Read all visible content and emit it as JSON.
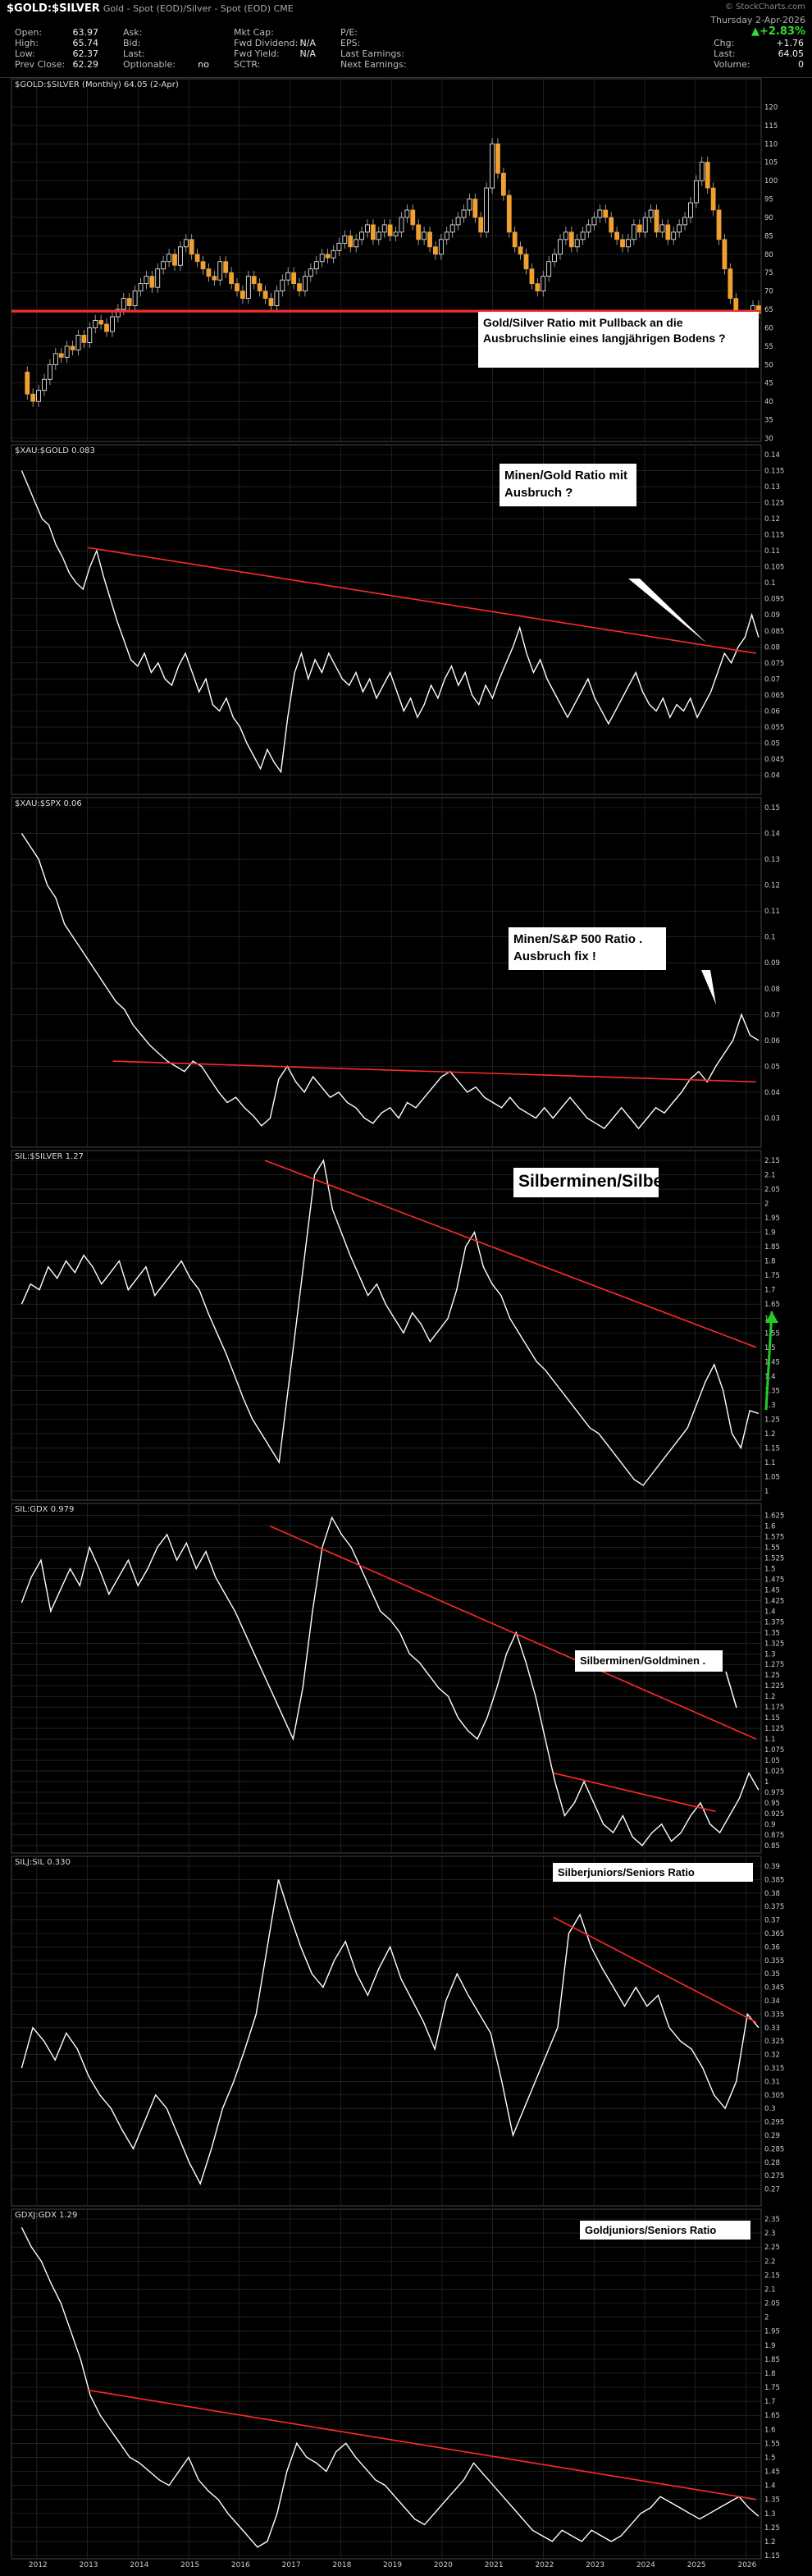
{
  "header": {
    "symbol": "$GOLD:$SILVER",
    "description": "Gold - Spot (EOD)/Silver - Spot (EOD)  CME",
    "date": "Thursday 2-Apr-2026",
    "change_pct": "▲+2.83%",
    "left_stats": [
      {
        "label": "Open:",
        "value": "63.97"
      },
      {
        "label": "High:",
        "value": "65.74"
      },
      {
        "label": "Low:",
        "value": "62.37"
      },
      {
        "label": "Prev Close:",
        "value": "62.29"
      }
    ],
    "mid_stats": [
      {
        "label": "Ask:",
        "value": ""
      },
      {
        "label": "Bid:",
        "value": ""
      },
      {
        "label": "Last:",
        "value": ""
      },
      {
        "label": "Optionable:",
        "value": "no"
      }
    ],
    "mid2_stats": [
      {
        "label": "Mkt Cap:",
        "value": ""
      },
      {
        "label": "Fwd Dividend:",
        "value": "N/A"
      },
      {
        "label": "Fwd Yield:",
        "value": "N/A"
      },
      {
        "label": "SCTR:",
        "value": ""
      }
    ],
    "right_stats": [
      {
        "label": "P/E:",
        "value": ""
      },
      {
        "label": "EPS:",
        "value": ""
      },
      {
        "label": "Last Earnings:",
        "value": ""
      },
      {
        "label": "Next Earnings:",
        "value": ""
      }
    ],
    "far_right_stats": [
      {
        "label": "Chg:",
        "value": "+1.76"
      },
      {
        "label": "Last:",
        "value": "64.05"
      },
      {
        "label": "Volume:",
        "value": "0"
      }
    ],
    "watermark": "© StockCharts.com"
  },
  "chart_data": [
    {
      "type": "candlestick",
      "legend": "$GOLD:$SILVER (Monthly) 64.05 (2-Apr)",
      "ylim": [
        30,
        125
      ],
      "ticks": [
        30,
        35,
        40,
        45,
        50,
        55,
        60,
        65,
        70,
        75,
        80,
        85,
        90,
        95,
        100,
        105,
        110,
        115,
        120
      ],
      "closes": [
        48,
        42,
        40,
        43,
        46,
        50,
        53,
        52,
        55,
        54,
        58,
        56,
        60,
        62,
        61,
        59,
        63,
        65,
        68,
        66,
        70,
        72,
        74,
        71,
        76,
        78,
        80,
        77,
        82,
        84,
        80,
        78,
        76,
        74,
        73,
        78,
        75,
        72,
        70,
        68,
        74,
        72,
        70,
        68,
        66,
        70,
        73,
        75,
        72,
        70,
        74,
        76,
        78,
        80,
        79,
        81,
        83,
        85,
        82,
        84,
        86,
        88,
        84,
        86,
        88,
        85,
        86,
        90,
        92,
        88,
        84,
        86,
        82,
        80,
        84,
        86,
        88,
        90,
        92,
        95,
        90,
        86,
        98,
        110,
        102,
        96,
        86,
        82,
        80,
        76,
        72,
        70,
        74,
        78,
        80,
        84,
        86,
        82,
        84,
        86,
        88,
        90,
        92,
        90,
        86,
        84,
        82,
        84,
        88,
        86,
        90,
        92,
        86,
        88,
        84,
        86,
        88,
        90,
        94,
        100,
        105,
        98,
        92,
        84,
        76,
        68,
        60,
        52,
        58,
        66,
        64
      ],
      "annotations": [
        {
          "text": "Gold/Silver Ratio mit Pullback an die Ausbruchslinie eines langjährigen Bodens ?"
        }
      ]
    },
    {
      "type": "line",
      "legend": "$XAU:$GOLD 0.083",
      "ylim": [
        0.035,
        0.14
      ],
      "ticks": [
        0.04,
        0.045,
        0.05,
        0.055,
        0.06,
        0.065,
        0.07,
        0.075,
        0.08,
        0.085,
        0.09,
        0.095,
        0.1,
        0.105,
        0.11,
        0.115,
        0.12,
        0.125,
        0.13,
        0.135,
        0.14
      ],
      "values": [
        0.135,
        0.13,
        0.125,
        0.12,
        0.118,
        0.112,
        0.108,
        0.103,
        0.1,
        0.098,
        0.105,
        0.11,
        0.102,
        0.095,
        0.088,
        0.082,
        0.076,
        0.074,
        0.078,
        0.072,
        0.075,
        0.07,
        0.068,
        0.074,
        0.078,
        0.072,
        0.066,
        0.07,
        0.062,
        0.06,
        0.064,
        0.058,
        0.055,
        0.05,
        0.046,
        0.042,
        0.048,
        0.044,
        0.041,
        0.058,
        0.072,
        0.078,
        0.07,
        0.076,
        0.072,
        0.078,
        0.074,
        0.07,
        0.068,
        0.072,
        0.066,
        0.07,
        0.064,
        0.068,
        0.072,
        0.066,
        0.06,
        0.064,
        0.058,
        0.062,
        0.068,
        0.064,
        0.07,
        0.074,
        0.068,
        0.072,
        0.065,
        0.062,
        0.068,
        0.064,
        0.07,
        0.075,
        0.08,
        0.086,
        0.078,
        0.072,
        0.076,
        0.07,
        0.066,
        0.062,
        0.058,
        0.062,
        0.066,
        0.07,
        0.064,
        0.06,
        0.056,
        0.06,
        0.064,
        0.068,
        0.072,
        0.066,
        0.062,
        0.06,
        0.064,
        0.058,
        0.062,
        0.06,
        0.064,
        0.058,
        0.062,
        0.066,
        0.072,
        0.078,
        0.075,
        0.08,
        0.083,
        0.09,
        0.083
      ],
      "trendline": {
        "x": [
          2013,
          2026.2
        ],
        "y": [
          0.111,
          0.078
        ]
      },
      "annotations": [
        {
          "text": "Minen/Gold Ratio mit Ausbruch ?"
        }
      ]
    },
    {
      "type": "line",
      "legend": "$XAU:$SPX 0.06",
      "ylim": [
        0.02,
        0.15
      ],
      "ticks": [
        0.03,
        0.04,
        0.05,
        0.06,
        0.07,
        0.08,
        0.09,
        0.1,
        0.11,
        0.12,
        0.13,
        0.14,
        0.15
      ],
      "values": [
        0.14,
        0.135,
        0.13,
        0.12,
        0.115,
        0.105,
        0.1,
        0.095,
        0.09,
        0.085,
        0.08,
        0.075,
        0.072,
        0.066,
        0.062,
        0.058,
        0.055,
        0.052,
        0.05,
        0.048,
        0.052,
        0.05,
        0.045,
        0.04,
        0.036,
        0.038,
        0.034,
        0.031,
        0.027,
        0.03,
        0.045,
        0.05,
        0.044,
        0.04,
        0.046,
        0.042,
        0.038,
        0.04,
        0.036,
        0.034,
        0.03,
        0.028,
        0.032,
        0.034,
        0.03,
        0.036,
        0.034,
        0.038,
        0.042,
        0.046,
        0.048,
        0.044,
        0.04,
        0.042,
        0.038,
        0.036,
        0.034,
        0.038,
        0.034,
        0.032,
        0.03,
        0.034,
        0.03,
        0.034,
        0.038,
        0.034,
        0.03,
        0.028,
        0.026,
        0.03,
        0.034,
        0.03,
        0.026,
        0.03,
        0.034,
        0.032,
        0.036,
        0.04,
        0.045,
        0.048,
        0.044,
        0.05,
        0.055,
        0.06,
        0.07,
        0.062,
        0.06
      ],
      "trendline": {
        "x": [
          2013.5,
          2026.2
        ],
        "y": [
          0.052,
          0.044
        ]
      },
      "annotations": [
        {
          "text": "Minen/S&P 500 Ratio . Ausbruch fix !"
        }
      ]
    },
    {
      "type": "line",
      "legend": "SIL:$SILVER 1.27",
      "ylim": [
        0.98,
        2.15
      ],
      "ticks": [
        1.0,
        1.05,
        1.1,
        1.15,
        1.2,
        1.25,
        1.3,
        1.35,
        1.4,
        1.45,
        1.5,
        1.55,
        1.6,
        1.65,
        1.7,
        1.75,
        1.8,
        1.85,
        1.9,
        1.95,
        2.0,
        2.05,
        2.1,
        2.15
      ],
      "values": [
        1.65,
        1.72,
        1.7,
        1.78,
        1.74,
        1.8,
        1.76,
        1.82,
        1.78,
        1.72,
        1.76,
        1.8,
        1.7,
        1.74,
        1.78,
        1.68,
        1.72,
        1.76,
        1.8,
        1.74,
        1.7,
        1.62,
        1.55,
        1.48,
        1.4,
        1.32,
        1.25,
        1.2,
        1.15,
        1.1,
        1.35,
        1.6,
        1.85,
        2.1,
        2.15,
        1.98,
        1.9,
        1.82,
        1.75,
        1.68,
        1.72,
        1.65,
        1.6,
        1.55,
        1.62,
        1.58,
        1.52,
        1.56,
        1.6,
        1.7,
        1.85,
        1.9,
        1.78,
        1.72,
        1.68,
        1.6,
        1.55,
        1.5,
        1.45,
        1.42,
        1.38,
        1.34,
        1.3,
        1.26,
        1.22,
        1.2,
        1.16,
        1.12,
        1.08,
        1.04,
        1.02,
        1.06,
        1.1,
        1.14,
        1.18,
        1.22,
        1.3,
        1.38,
        1.44,
        1.35,
        1.2,
        1.15,
        1.28,
        1.27
      ],
      "trendline": {
        "x": [
          2016.5,
          2026.2
        ],
        "y": [
          2.15,
          1.5
        ]
      },
      "annotations": [
        {
          "text": "Silberminen/Silber"
        }
      ]
    },
    {
      "type": "line",
      "legend": "SIL:GDX 0.979",
      "ylim": [
        0.84,
        1.63
      ],
      "ticks": [
        0.85,
        0.875,
        0.9,
        0.925,
        0.95,
        0.975,
        1.0,
        1.025,
        1.05,
        1.075,
        1.1,
        1.125,
        1.15,
        1.175,
        1.2,
        1.225,
        1.25,
        1.275,
        1.3,
        1.325,
        1.35,
        1.375,
        1.4,
        1.425,
        1.45,
        1.475,
        1.5,
        1.525,
        1.55,
        1.575,
        1.6,
        1.625
      ],
      "values": [
        1.42,
        1.48,
        1.52,
        1.4,
        1.45,
        1.5,
        1.46,
        1.55,
        1.5,
        1.44,
        1.48,
        1.52,
        1.46,
        1.5,
        1.55,
        1.58,
        1.52,
        1.56,
        1.5,
        1.54,
        1.48,
        1.44,
        1.4,
        1.35,
        1.3,
        1.25,
        1.2,
        1.15,
        1.1,
        1.22,
        1.4,
        1.55,
        1.62,
        1.58,
        1.55,
        1.5,
        1.45,
        1.4,
        1.38,
        1.35,
        1.3,
        1.28,
        1.25,
        1.22,
        1.2,
        1.15,
        1.12,
        1.1,
        1.15,
        1.22,
        1.3,
        1.35,
        1.28,
        1.2,
        1.1,
        1.0,
        0.92,
        0.95,
        1.0,
        0.95,
        0.9,
        0.88,
        0.92,
        0.87,
        0.85,
        0.88,
        0.9,
        0.86,
        0.88,
        0.92,
        0.95,
        0.9,
        0.88,
        0.92,
        0.96,
        1.02,
        0.98
      ],
      "trendlines": [
        {
          "x": [
            2016.6,
            2026.2
          ],
          "y": [
            1.6,
            1.1
          ]
        },
        {
          "x": [
            2022.2,
            2025.4
          ],
          "y": [
            1.02,
            0.93
          ]
        }
      ],
      "annotations": [
        {
          "text": "Silberminen/Goldminen ."
        }
      ]
    },
    {
      "type": "line",
      "legend": "SILJ:SIL 0.330",
      "ylim": [
        0.265,
        0.39
      ],
      "ticks": [
        0.27,
        0.275,
        0.28,
        0.285,
        0.29,
        0.295,
        0.3,
        0.305,
        0.31,
        0.315,
        0.32,
        0.325,
        0.33,
        0.335,
        0.34,
        0.345,
        0.35,
        0.355,
        0.36,
        0.365,
        0.37,
        0.375,
        0.38,
        0.385,
        0.39
      ],
      "values": [
        0.315,
        0.33,
        0.325,
        0.318,
        0.328,
        0.322,
        0.312,
        0.305,
        0.3,
        0.292,
        0.285,
        0.295,
        0.305,
        0.3,
        0.29,
        0.28,
        0.272,
        0.285,
        0.3,
        0.31,
        0.322,
        0.335,
        0.36,
        0.385,
        0.372,
        0.36,
        0.35,
        0.345,
        0.355,
        0.362,
        0.35,
        0.342,
        0.352,
        0.36,
        0.348,
        0.34,
        0.332,
        0.322,
        0.34,
        0.35,
        0.342,
        0.335,
        0.328,
        0.31,
        0.29,
        0.3,
        0.31,
        0.32,
        0.33,
        0.365,
        0.372,
        0.36,
        0.352,
        0.345,
        0.338,
        0.345,
        0.338,
        0.342,
        0.33,
        0.325,
        0.322,
        0.315,
        0.305,
        0.3,
        0.31,
        0.335,
        0.33
      ],
      "trendline": {
        "x": [
          2022.2,
          2026.2
        ],
        "y": [
          0.371,
          0.332
        ]
      },
      "annotations": [
        {
          "text": "Silberjuniors/Seniors Ratio"
        }
      ]
    },
    {
      "type": "line",
      "legend": "GDXJ:GDX 1.29",
      "ylim": [
        1.15,
        2.35
      ],
      "ticks": [
        1.15,
        1.2,
        1.25,
        1.3,
        1.35,
        1.4,
        1.45,
        1.5,
        1.55,
        1.6,
        1.65,
        1.7,
        1.75,
        1.8,
        1.85,
        1.9,
        1.95,
        2.0,
        2.05,
        2.1,
        2.15,
        2.2,
        2.25,
        2.3,
        2.35
      ],
      "values": [
        2.32,
        2.25,
        2.2,
        2.12,
        2.05,
        1.95,
        1.85,
        1.72,
        1.65,
        1.6,
        1.55,
        1.5,
        1.48,
        1.45,
        1.42,
        1.4,
        1.45,
        1.5,
        1.42,
        1.38,
        1.35,
        1.3,
        1.26,
        1.22,
        1.18,
        1.2,
        1.3,
        1.45,
        1.55,
        1.5,
        1.48,
        1.45,
        1.52,
        1.55,
        1.5,
        1.46,
        1.42,
        1.4,
        1.36,
        1.32,
        1.28,
        1.26,
        1.3,
        1.34,
        1.38,
        1.42,
        1.48,
        1.44,
        1.4,
        1.36,
        1.32,
        1.28,
        1.24,
        1.22,
        1.2,
        1.24,
        1.22,
        1.2,
        1.24,
        1.22,
        1.2,
        1.22,
        1.26,
        1.3,
        1.32,
        1.36,
        1.34,
        1.32,
        1.3,
        1.28,
        1.3,
        1.32,
        1.34,
        1.36,
        1.32,
        1.29
      ],
      "trendline": {
        "x": [
          2013,
          2026.2
        ],
        "y": [
          1.74,
          1.35
        ]
      },
      "annotations": [
        {
          "text": "Goldjuniors/Seniors Ratio"
        }
      ]
    }
  ],
  "x_axis": {
    "labels": [
      "2012",
      "2013",
      "2014",
      "2015",
      "2016",
      "2017",
      "2018",
      "2019",
      "2020",
      "2021",
      "2022",
      "2023",
      "2024",
      "2025",
      "2026"
    ],
    "range": [
      2011.5,
      2026.3
    ]
  },
  "colors": {
    "trendline": "#ff2a2a",
    "line": "#ffffff",
    "candle_up": "#ffffff",
    "candle_down": "#f0a030",
    "grid": "#333333",
    "background": "#000000",
    "arrow": "#22cc22"
  }
}
